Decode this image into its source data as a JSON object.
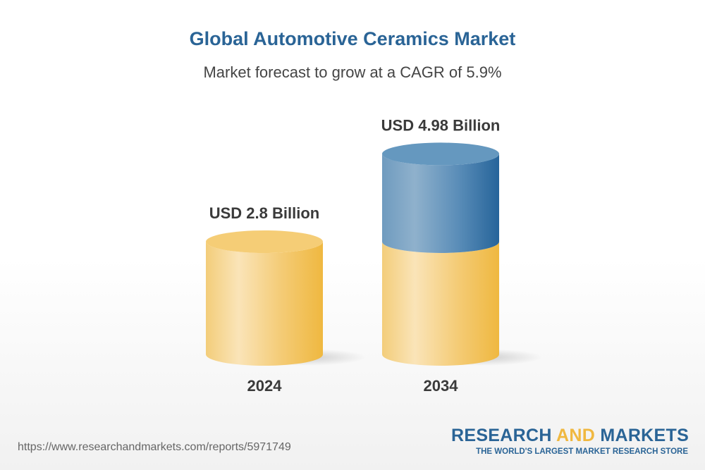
{
  "chart_data": {
    "type": "bar",
    "style": "3d-cylinder",
    "title": "Global Automotive Ceramics Market",
    "subtitle": "Market forecast to grow at a CAGR of 5.9%",
    "categories": [
      "2024",
      "2034"
    ],
    "values": [
      2.8,
      4.98
    ],
    "data_labels": [
      "USD 2.8 Billion",
      "USD 4.98 Billion"
    ],
    "unit": "USD Billion",
    "colors": {
      "base": "#f0b840",
      "growth": "#2a6496"
    },
    "grid": false
  },
  "footer": {
    "url": "https://www.researchandmarkets.com/reports/5971749",
    "logo_part1": "RESEARCH ",
    "logo_part2": "AND",
    "logo_part3": " MARKETS",
    "tagline": "THE WORLD'S LARGEST MARKET RESEARCH STORE"
  }
}
